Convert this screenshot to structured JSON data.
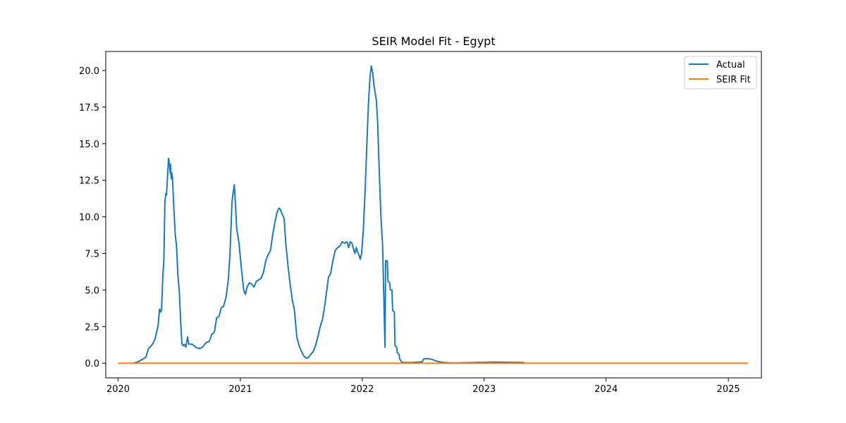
{
  "chart_data": {
    "type": "line",
    "title": "SEIR Model Fit - Egypt",
    "xlabel": "",
    "ylabel": "",
    "xlim": [
      "2019-11-25",
      "2025-04-10"
    ],
    "ylim": [
      -1.0,
      21.3
    ],
    "x_ticks": [
      "2020",
      "2021",
      "2022",
      "2023",
      "2024",
      "2025"
    ],
    "x_tick_dates": [
      "2020-01-01",
      "2021-01-01",
      "2022-01-01",
      "2023-01-01",
      "2024-01-01",
      "2025-01-01"
    ],
    "y_ticks": [
      "0.0",
      "2.5",
      "5.0",
      "7.5",
      "10.0",
      "12.5",
      "15.0",
      "17.5",
      "20.0"
    ],
    "y_tick_values": [
      0,
      2.5,
      5,
      7.5,
      10,
      12.5,
      15,
      17.5,
      20
    ],
    "grid": false,
    "legend_position": "top-right",
    "colors": {
      "actual": "#1f77b4",
      "seir": "#ff7f0e"
    },
    "series": [
      {
        "name": "Actual",
        "points": [
          [
            "2020-02-14",
            0.0
          ],
          [
            "2020-03-01",
            0.1
          ],
          [
            "2020-03-16",
            0.3
          ],
          [
            "2020-03-24",
            0.4
          ],
          [
            "2020-04-01",
            1.0
          ],
          [
            "2020-04-10",
            1.2
          ],
          [
            "2020-04-20",
            1.6
          ],
          [
            "2020-04-30",
            2.6
          ],
          [
            "2020-05-04",
            3.7
          ],
          [
            "2020-05-07",
            3.5
          ],
          [
            "2020-05-10",
            3.6
          ],
          [
            "2020-05-14",
            6.0
          ],
          [
            "2020-05-17",
            7.0
          ],
          [
            "2020-05-20",
            11.0
          ],
          [
            "2020-05-23",
            11.6
          ],
          [
            "2020-05-25",
            11.5
          ],
          [
            "2020-05-28",
            12.8
          ],
          [
            "2020-05-31",
            14.0
          ],
          [
            "2020-06-03",
            13.5
          ],
          [
            "2020-06-05",
            13.0
          ],
          [
            "2020-06-06",
            13.6
          ],
          [
            "2020-06-08",
            12.6
          ],
          [
            "2020-06-10",
            13.0
          ],
          [
            "2020-06-12",
            12.6
          ],
          [
            "2020-06-15",
            11.0
          ],
          [
            "2020-06-20",
            8.8
          ],
          [
            "2020-06-24",
            8.0
          ],
          [
            "2020-06-28",
            6.0
          ],
          [
            "2020-07-02",
            5.0
          ],
          [
            "2020-07-06",
            3.0
          ],
          [
            "2020-07-10",
            1.3
          ],
          [
            "2020-07-14",
            1.2
          ],
          [
            "2020-07-17",
            1.3
          ],
          [
            "2020-07-22",
            1.1
          ],
          [
            "2020-07-27",
            1.8
          ],
          [
            "2020-07-31",
            1.3
          ],
          [
            "2020-08-10",
            1.3
          ],
          [
            "2020-08-20",
            1.1
          ],
          [
            "2020-09-01",
            1.0
          ],
          [
            "2020-09-10",
            1.1
          ],
          [
            "2020-09-20",
            1.4
          ],
          [
            "2020-09-30",
            1.5
          ],
          [
            "2020-10-08",
            2.0
          ],
          [
            "2020-10-15",
            2.1
          ],
          [
            "2020-10-22",
            3.1
          ],
          [
            "2020-10-29",
            3.2
          ],
          [
            "2020-11-05",
            3.8
          ],
          [
            "2020-11-12",
            3.9
          ],
          [
            "2020-11-19",
            4.5
          ],
          [
            "2020-11-26",
            5.7
          ],
          [
            "2020-12-01",
            7.5
          ],
          [
            "2020-12-07",
            11.0
          ],
          [
            "2020-12-10",
            11.6
          ],
          [
            "2020-12-14",
            12.2
          ],
          [
            "2020-12-17",
            11.0
          ],
          [
            "2020-12-21",
            9.2
          ],
          [
            "2020-12-28",
            8.2
          ],
          [
            "2021-01-04",
            6.5
          ],
          [
            "2021-01-11",
            5.0
          ],
          [
            "2021-01-16",
            4.7
          ],
          [
            "2021-01-21",
            5.2
          ],
          [
            "2021-01-28",
            5.5
          ],
          [
            "2021-02-04",
            5.4
          ],
          [
            "2021-02-11",
            5.2
          ],
          [
            "2021-02-18",
            5.6
          ],
          [
            "2021-02-25",
            5.7
          ],
          [
            "2021-03-04",
            5.8
          ],
          [
            "2021-03-11",
            6.2
          ],
          [
            "2021-03-18",
            7.0
          ],
          [
            "2021-03-25",
            7.4
          ],
          [
            "2021-04-01",
            7.7
          ],
          [
            "2021-04-08",
            8.8
          ],
          [
            "2021-04-15",
            9.7
          ],
          [
            "2021-04-22",
            10.4
          ],
          [
            "2021-04-27",
            10.6
          ],
          [
            "2021-05-01",
            10.5
          ],
          [
            "2021-05-06",
            10.2
          ],
          [
            "2021-05-12",
            9.9
          ],
          [
            "2021-05-17",
            8.2
          ],
          [
            "2021-05-22",
            7.0
          ],
          [
            "2021-05-29",
            5.6
          ],
          [
            "2021-06-05",
            4.4
          ],
          [
            "2021-06-12",
            3.6
          ],
          [
            "2021-06-19",
            1.8
          ],
          [
            "2021-06-26",
            1.2
          ],
          [
            "2021-07-03",
            0.8
          ],
          [
            "2021-07-10",
            0.5
          ],
          [
            "2021-07-17",
            0.35
          ],
          [
            "2021-07-24",
            0.4
          ],
          [
            "2021-07-31",
            0.6
          ],
          [
            "2021-08-07",
            0.8
          ],
          [
            "2021-08-14",
            1.2
          ],
          [
            "2021-08-21",
            1.8
          ],
          [
            "2021-08-28",
            2.5
          ],
          [
            "2021-09-04",
            3.0
          ],
          [
            "2021-09-11",
            4.0
          ],
          [
            "2021-09-18",
            5.2
          ],
          [
            "2021-09-22",
            5.9
          ],
          [
            "2021-09-28",
            6.1
          ],
          [
            "2021-10-05",
            7.0
          ],
          [
            "2021-10-12",
            7.7
          ],
          [
            "2021-10-19",
            7.9
          ],
          [
            "2021-10-26",
            8.0
          ],
          [
            "2021-11-02",
            8.3
          ],
          [
            "2021-11-09",
            8.2
          ],
          [
            "2021-11-16",
            8.3
          ],
          [
            "2021-11-21",
            7.9
          ],
          [
            "2021-11-26",
            8.3
          ],
          [
            "2021-12-01",
            8.2
          ],
          [
            "2021-12-06",
            7.8
          ],
          [
            "2021-12-10",
            7.5
          ],
          [
            "2021-12-14",
            7.9
          ],
          [
            "2021-12-18",
            7.6
          ],
          [
            "2021-12-22",
            7.4
          ],
          [
            "2021-12-26",
            7.1
          ],
          [
            "2021-12-30",
            7.5
          ],
          [
            "2022-01-04",
            9.0
          ],
          [
            "2022-01-09",
            11.5
          ],
          [
            "2022-01-14",
            14.5
          ],
          [
            "2022-01-19",
            17.5
          ],
          [
            "2022-01-24",
            19.5
          ],
          [
            "2022-01-28",
            20.3
          ],
          [
            "2022-02-01",
            19.9
          ],
          [
            "2022-02-05",
            19.0
          ],
          [
            "2022-02-12",
            18.0
          ],
          [
            "2022-02-16",
            16.5
          ],
          [
            "2022-02-21",
            13.0
          ],
          [
            "2022-02-26",
            10.0
          ],
          [
            "2022-03-03",
            8.0
          ],
          [
            "2022-03-06",
            5.0
          ],
          [
            "2022-03-10",
            1.1
          ],
          [
            "2022-03-12",
            7.0
          ],
          [
            "2022-03-17",
            7.0
          ],
          [
            "2022-03-19",
            5.6
          ],
          [
            "2022-03-24",
            5.5
          ],
          [
            "2022-03-26",
            5.0
          ],
          [
            "2022-03-31",
            5.0
          ],
          [
            "2022-04-02",
            3.6
          ],
          [
            "2022-04-07",
            3.5
          ],
          [
            "2022-04-09",
            1.2
          ],
          [
            "2022-04-14",
            1.1
          ],
          [
            "2022-04-16",
            0.7
          ],
          [
            "2022-04-21",
            0.6
          ],
          [
            "2022-04-23",
            0.3
          ],
          [
            "2022-04-28",
            0.1
          ],
          [
            "2022-05-05",
            0.05
          ],
          [
            "2022-06-01",
            0.05
          ],
          [
            "2022-06-30",
            0.1
          ],
          [
            "2022-07-04",
            0.3
          ],
          [
            "2022-07-15",
            0.32
          ],
          [
            "2022-07-25",
            0.28
          ],
          [
            "2022-08-03",
            0.22
          ],
          [
            "2022-08-10",
            0.15
          ],
          [
            "2022-08-20",
            0.1
          ],
          [
            "2022-09-01",
            0.05
          ],
          [
            "2022-10-01",
            0.02
          ],
          [
            "2022-12-01",
            0.05
          ],
          [
            "2023-02-01",
            0.08
          ],
          [
            "2023-05-01",
            0.05
          ]
        ]
      },
      {
        "name": "SEIR Fit",
        "points": [
          [
            "2020-01-01",
            0.0
          ],
          [
            "2025-03-01",
            0.0
          ]
        ]
      }
    ]
  }
}
